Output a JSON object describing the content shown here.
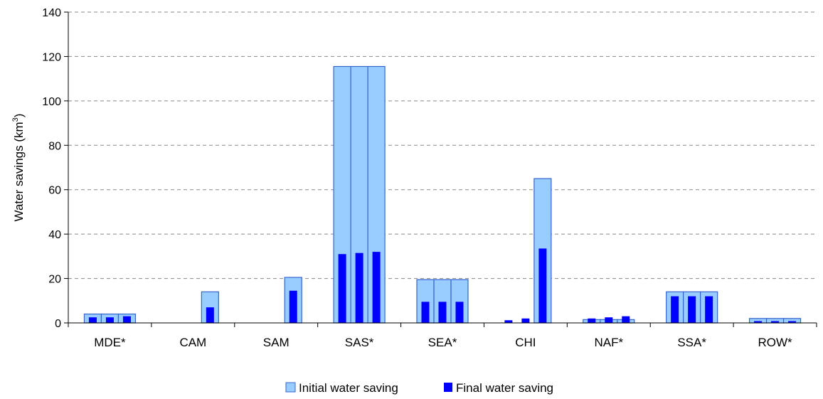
{
  "chart_data": {
    "type": "bar",
    "title": "",
    "xlabel": "",
    "ylabel": "Water savings (km",
    "ylabel_superscript": "3",
    "ylabel_suffix": ")",
    "ylim": [
      0,
      140
    ],
    "yticks": [
      0,
      20,
      40,
      60,
      80,
      100,
      120,
      140
    ],
    "grid": "horizontal-dashed",
    "legend_position": "bottom",
    "categories": [
      "MDE*",
      "CAM",
      "SAM",
      "SAS*",
      "SEA*",
      "CHI",
      "NAF*",
      "SSA*",
      "ROW*"
    ],
    "series": [
      {
        "name": "Initial water saving",
        "color": "#99ccff",
        "edge_color": "#3366cc",
        "values": [
          [
            4,
            4,
            4
          ],
          [
            0,
            0,
            14
          ],
          [
            0,
            0,
            20.5
          ],
          [
            115.5,
            115.5,
            115.5
          ],
          [
            19.5,
            19.5,
            19.5
          ],
          [
            0,
            0,
            65
          ],
          [
            1.5,
            1.5,
            1.5
          ],
          [
            14,
            14,
            14
          ],
          [
            2,
            2,
            2
          ]
        ]
      },
      {
        "name": "Final water saving",
        "color": "#0000ff",
        "values": [
          [
            2.5,
            2.5,
            3
          ],
          [
            0,
            0,
            7
          ],
          [
            0,
            0,
            14.5
          ],
          [
            31,
            31.5,
            32
          ],
          [
            9.5,
            9.5,
            9.5
          ],
          [
            1.2,
            2,
            33.5
          ],
          [
            2,
            2.5,
            3
          ],
          [
            12,
            12,
            12
          ],
          [
            0.8,
            0.8,
            0.8
          ]
        ]
      }
    ]
  }
}
